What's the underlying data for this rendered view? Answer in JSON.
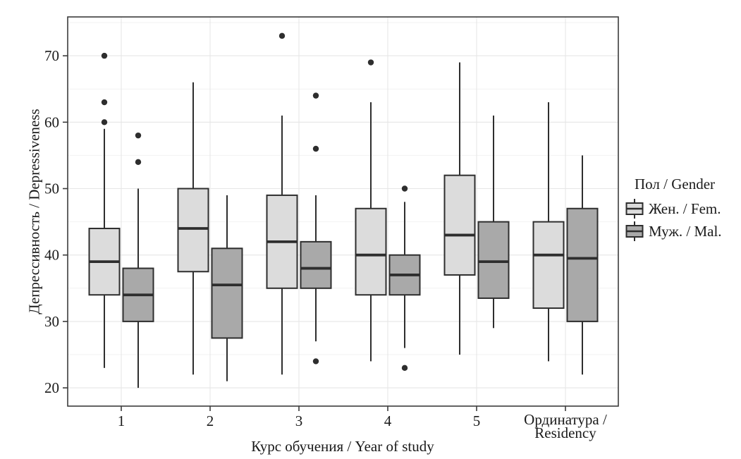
{
  "figure": {
    "background": "#ffffff"
  },
  "chart_data": {
    "type": "boxplot",
    "orientation": "vertical",
    "title": "",
    "xlabel": "Курс обучения / Year of study",
    "ylabel": "Депрессивность / Depressiveness",
    "categories": [
      "1",
      "2",
      "3",
      "4",
      "5",
      [
        "Ординатура /",
        "Residency"
      ]
    ],
    "yticks": [
      20,
      30,
      40,
      50,
      60,
      70
    ],
    "ylim": [
      17.25,
      75.85
    ],
    "grid": {
      "major": true,
      "minor": true
    },
    "legend": {
      "title": "Пол / Gender",
      "position": "right",
      "items": [
        {
          "label": "Жен. / Fem.",
          "fill": "#dcdcdc"
        },
        {
          "label": "Муж. / Mal.",
          "fill": "#a9a9a9"
        }
      ]
    },
    "colors": {
      "line": "#2e2e2e",
      "outlier": "#2e2e2e",
      "grid_major": "#e6e6e6",
      "grid_minor": "#f2f2f2",
      "panel_border": "#3c3c3c",
      "text": "#1a1a1a"
    },
    "series": [
      {
        "name": "Жен. / Fem.",
        "fill": "#dcdcdc",
        "boxes": [
          {
            "category": "1",
            "low": 23,
            "q1": 34,
            "median": 39,
            "q3": 44,
            "high": 59,
            "outliers": [
              60,
              63,
              70
            ]
          },
          {
            "category": "2",
            "low": 22,
            "q1": 37.5,
            "median": 44,
            "q3": 50,
            "high": 66,
            "outliers": []
          },
          {
            "category": "3",
            "low": 22,
            "q1": 35,
            "median": 42,
            "q3": 49,
            "high": 61,
            "outliers": [
              73
            ]
          },
          {
            "category": "4",
            "low": 24,
            "q1": 34,
            "median": 40,
            "q3": 47,
            "high": 63,
            "outliers": [
              69
            ]
          },
          {
            "category": "5",
            "low": 25,
            "q1": 37,
            "median": 43,
            "q3": 52,
            "high": 69,
            "outliers": []
          },
          {
            "category": "Ординатура / Residency",
            "low": 24,
            "q1": 32,
            "median": 40,
            "q3": 45,
            "high": 63,
            "outliers": []
          }
        ]
      },
      {
        "name": "Муж. / Mal.",
        "fill": "#a9a9a9",
        "boxes": [
          {
            "category": "1",
            "low": 20,
            "q1": 30,
            "median": 34,
            "q3": 38,
            "high": 50,
            "outliers": [
              54,
              58
            ]
          },
          {
            "category": "2",
            "low": 21,
            "q1": 27.5,
            "median": 35.5,
            "q3": 41,
            "high": 49,
            "outliers": []
          },
          {
            "category": "3",
            "low": 27,
            "q1": 35,
            "median": 38,
            "q3": 42,
            "high": 49,
            "outliers": [
              24,
              56,
              64
            ]
          },
          {
            "category": "4",
            "low": 26,
            "q1": 34,
            "median": 37,
            "q3": 40,
            "high": 48,
            "outliers": [
              23,
              50
            ]
          },
          {
            "category": "5",
            "low": 29,
            "q1": 33.5,
            "median": 39,
            "q3": 45,
            "high": 61,
            "outliers": []
          },
          {
            "category": "Ординатура / Residency",
            "low": 22,
            "q1": 30,
            "median": 39.5,
            "q3": 47,
            "high": 55,
            "outliers": []
          }
        ]
      }
    ]
  }
}
